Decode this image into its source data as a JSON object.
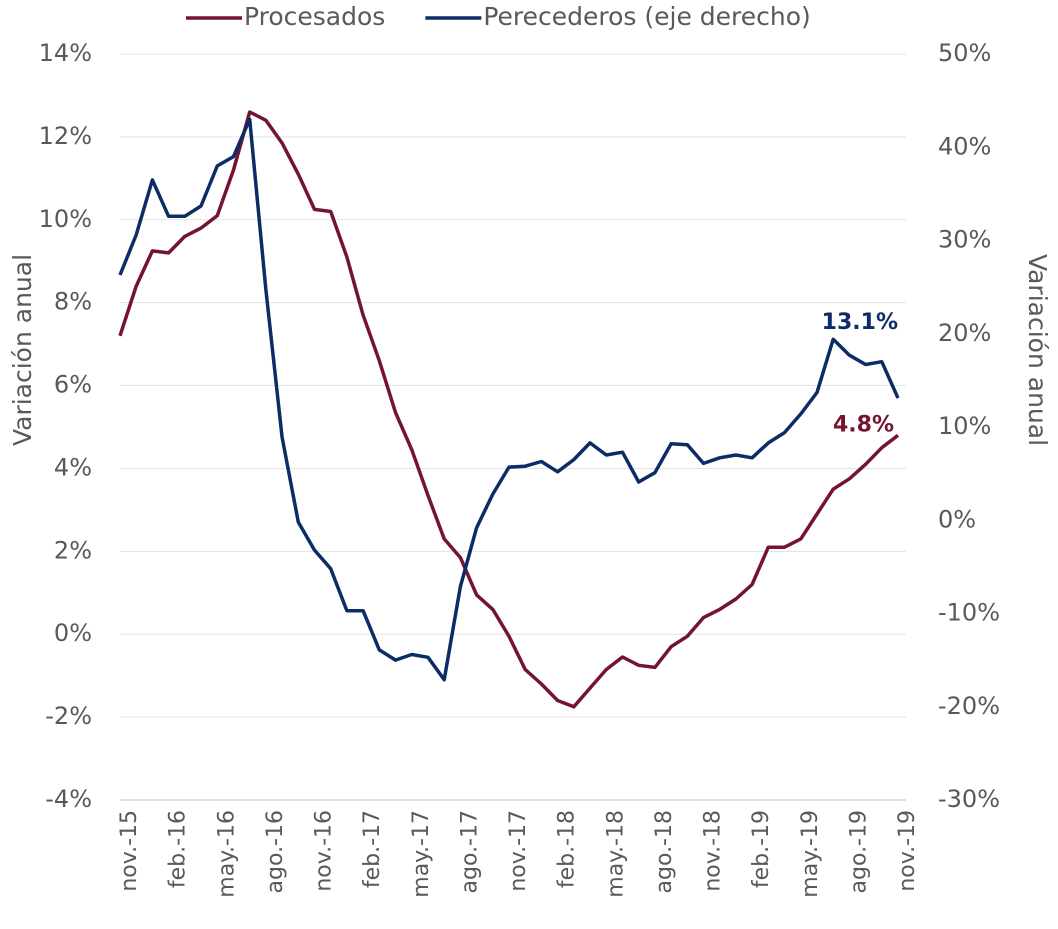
{
  "chart_data": {
    "type": "line",
    "y_label": "Variación anual",
    "y2_label": "Variación anual",
    "categories": [
      "nov.-15",
      null,
      null,
      "feb.-16",
      null,
      null,
      "may.-16",
      null,
      null,
      "ago.-16",
      null,
      null,
      "nov.-16",
      null,
      null,
      "feb.-17",
      null,
      null,
      "may.-17",
      null,
      null,
      "ago.-17",
      null,
      null,
      "nov.-17",
      null,
      null,
      "feb.-18",
      null,
      null,
      "may.-18",
      null,
      null,
      "ago.-18",
      null,
      null,
      "nov.-18",
      null,
      null,
      "feb.-19",
      null,
      null,
      "may.-19",
      null,
      null,
      "ago.-19",
      null,
      null,
      "nov.-19"
    ],
    "series": [
      {
        "name": "Procesados",
        "color": "#75142f",
        "axis": "y",
        "values": [
          7.2,
          8.4,
          9.25,
          9.2,
          9.6,
          9.8,
          10.1,
          11.2,
          12.6,
          12.4,
          11.85,
          11.1,
          10.25,
          10.2,
          9.1,
          7.7,
          6.6,
          5.35,
          4.45,
          3.35,
          2.3,
          1.85,
          0.95,
          0.6,
          -0.05,
          -0.85,
          -1.2,
          -1.6,
          -1.75,
          -1.3,
          -0.85,
          -0.55,
          -0.75,
          -0.8,
          -0.3,
          -0.05,
          0.4,
          0.6,
          0.85,
          1.2,
          2.1,
          2.1,
          2.3,
          2.9,
          3.5,
          3.75,
          4.1,
          4.5,
          4.8
        ],
        "value_labels": [
          null,
          null,
          null,
          null,
          null,
          null,
          null,
          null,
          null,
          null,
          null,
          null,
          null,
          null,
          null,
          null,
          null,
          null,
          null,
          null,
          null,
          null,
          null,
          null,
          null,
          null,
          null,
          null,
          null,
          null,
          null,
          null,
          null,
          null,
          null,
          null,
          null,
          null,
          null,
          null,
          null,
          null,
          null,
          null,
          null,
          null,
          null,
          null,
          "4.8%"
        ]
      },
      {
        "name": "Perecederos (eje derecho)",
        "color": "#0c2c66",
        "axis": "y2",
        "values": [
          26.3,
          30.6,
          36.5,
          32.6,
          32.6,
          33.7,
          38,
          39,
          43,
          24.7,
          8.9,
          -0.2,
          -3.2,
          -5.2,
          -9.7,
          -9.7,
          -13.9,
          -15,
          -14.4,
          -14.7,
          -17.1,
          -7.1,
          -0.8,
          2.8,
          5.7,
          5.8,
          6.3,
          5.2,
          6.5,
          8.3,
          7,
          7.3,
          4.1,
          5.1,
          8.2,
          8.1,
          6.1,
          6.7,
          7,
          6.7,
          8.3,
          9.4,
          11.4,
          13.7,
          19.4,
          17.7,
          16.7,
          17,
          13.1
        ],
        "value_labels": [
          null,
          null,
          null,
          null,
          null,
          null,
          null,
          null,
          null,
          null,
          null,
          null,
          null,
          null,
          null,
          null,
          null,
          null,
          null,
          null,
          null,
          null,
          null,
          null,
          null,
          null,
          null,
          null,
          null,
          null,
          null,
          null,
          null,
          null,
          null,
          null,
          null,
          null,
          null,
          null,
          null,
          null,
          null,
          null,
          null,
          null,
          null,
          null,
          "13.1%"
        ]
      }
    ],
    "ylim": [
      -4,
      14
    ],
    "yticks": [
      {
        "value": -4,
        "label": "-4%"
      },
      {
        "value": -2,
        "label": "-2%"
      },
      {
        "value": 0,
        "label": "0%"
      },
      {
        "value": 2,
        "label": "2%"
      },
      {
        "value": 4,
        "label": "4%"
      },
      {
        "value": 6,
        "label": "6%"
      },
      {
        "value": 8,
        "label": "8%"
      },
      {
        "value": 10,
        "label": "10%"
      },
      {
        "value": 12,
        "label": "12%"
      },
      {
        "value": 14,
        "label": "14%"
      }
    ],
    "y2lim": [
      -30,
      50
    ],
    "y2ticks": [
      {
        "value": -30,
        "label": "-30%"
      },
      {
        "value": -20,
        "label": "-20%"
      },
      {
        "value": -10,
        "label": "-10%"
      },
      {
        "value": 0,
        "label": "0%"
      },
      {
        "value": 10,
        "label": "10%"
      },
      {
        "value": 20,
        "label": "20%"
      },
      {
        "value": 30,
        "label": "30%"
      },
      {
        "value": 40,
        "label": "40%"
      },
      {
        "value": 50,
        "label": "50%"
      }
    ],
    "grid": true,
    "legend": "top"
  }
}
